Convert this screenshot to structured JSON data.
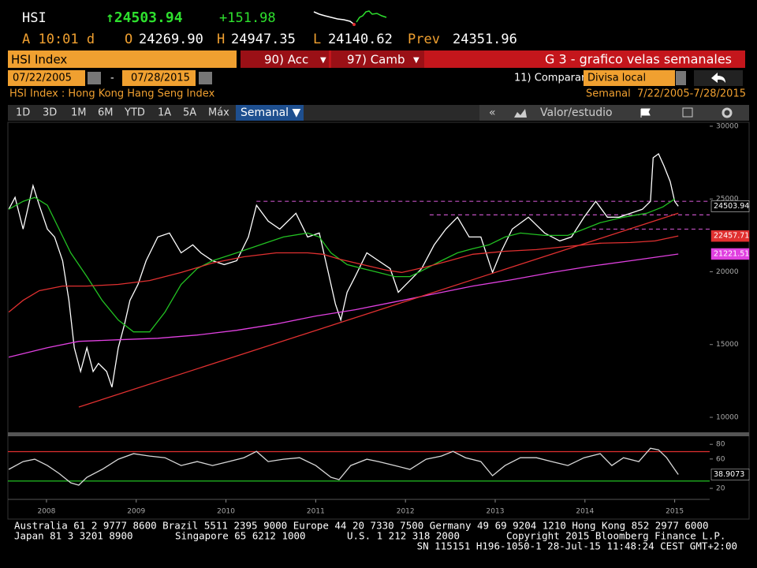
{
  "header": {
    "ticker": "HSI",
    "last": "↑24503.94",
    "change": "+151.98",
    "time": "A 10:01 d",
    "quotes": [
      {
        "label": "O",
        "value": "24269.90"
      },
      {
        "label": "H",
        "value": "24947.35"
      },
      {
        "label": "L",
        "value": "24140.62"
      },
      {
        "label": "Prev",
        "value": "24351.96"
      }
    ]
  },
  "toolbar": {
    "security": "HSI Index",
    "buttons": [
      "90) Acc",
      "97) Camb"
    ],
    "function_title": "G 3 - grafico velas semanales",
    "start_date": "07/22/2005",
    "date_separator": "-",
    "end_date": "07/28/2015",
    "compare": "11) Comparar",
    "currency": "Divisa local",
    "description": "HSI Index : Hong Kong Hang Seng Index",
    "period": "Semanal  7/22/2005-7/28/2015",
    "tabs": [
      "1D",
      "3D",
      "1M",
      "6M",
      "YTD",
      "1A",
      "5A",
      "Máx"
    ],
    "frequency": "Semanal ▼",
    "collapse": "«",
    "study": "Valor/estudio"
  },
  "chart_data": [
    {
      "type": "line",
      "xlim": [
        2008.07,
        2015.89
      ],
      "ylim": [
        8970,
        30270
      ],
      "yticks": [
        10000,
        15000,
        20000,
        25000,
        30000
      ],
      "grid": false,
      "hlines": [
        {
          "value": 24840,
          "from": 2010.84,
          "to": 2015.89,
          "color": "#c050c0",
          "dashed": true
        },
        {
          "value": 23910,
          "from": 2012.77,
          "to": 2015.89,
          "color": "#c050c0",
          "dashed": true
        },
        {
          "value": 22930,
          "from": 2014.58,
          "to": 2015.89,
          "color": "#c050c0",
          "dashed": true
        }
      ],
      "series": [
        {
          "color": "#ffffff",
          "label_last": true,
          "label_bg": "#000000",
          "x": [
            2008.08,
            2008.15,
            2008.24,
            2008.35,
            2008.42,
            2008.51,
            2008.59,
            2008.68,
            2008.75,
            2008.81,
            2008.88,
            2008.95,
            2009.02,
            2009.08,
            2009.17,
            2009.23,
            2009.3,
            2009.37,
            2009.43,
            2009.52,
            2009.61,
            2009.74,
            2009.87,
            2010.0,
            2010.13,
            2010.22,
            2010.35,
            2010.48,
            2010.62,
            2010.75,
            2010.84,
            2010.97,
            2011.1,
            2011.28,
            2011.41,
            2011.54,
            2011.63,
            2011.72,
            2011.78,
            2011.85,
            2011.94,
            2012.07,
            2012.2,
            2012.33,
            2012.42,
            2012.55,
            2012.68,
            2012.82,
            2012.95,
            2013.08,
            2013.21,
            2013.34,
            2013.47,
            2013.56,
            2013.69,
            2013.87,
            2014.05,
            2014.22,
            2014.35,
            2014.49,
            2014.62,
            2014.75,
            2014.88,
            2015.01,
            2015.14,
            2015.23,
            2015.26,
            2015.32,
            2015.38,
            2015.45,
            2015.5,
            2015.54
          ],
          "values": [
            24290,
            25110,
            22930,
            25920,
            24570,
            22930,
            22390,
            20760,
            18040,
            14780,
            13150,
            14780,
            13150,
            13700,
            13150,
            12070,
            14780,
            16410,
            18040,
            19130,
            20760,
            22390,
            22660,
            21300,
            21850,
            21300,
            20760,
            20490,
            20760,
            22390,
            24570,
            23480,
            22930,
            24020,
            22390,
            22660,
            20220,
            17770,
            16690,
            18590,
            19670,
            21300,
            20760,
            20220,
            18590,
            19400,
            20220,
            21850,
            22930,
            23750,
            22390,
            22390,
            19950,
            21300,
            22930,
            23750,
            22660,
            22120,
            22390,
            23750,
            24840,
            23750,
            23750,
            24020,
            24290,
            24840,
            27830,
            28100,
            27280,
            26200,
            24840,
            24503.94
          ]
        },
        {
          "color": "#22c022",
          "x": [
            2008.08,
            2008.24,
            2008.37,
            2008.51,
            2008.64,
            2008.77,
            2008.95,
            2009.12,
            2009.3,
            2009.47,
            2009.65,
            2009.82,
            2010.0,
            2010.18,
            2010.35,
            2010.62,
            2010.88,
            2011.14,
            2011.41,
            2011.54,
            2011.67,
            2011.85,
            2012.02,
            2012.2,
            2012.38,
            2012.55,
            2012.73,
            2012.9,
            2013.08,
            2013.25,
            2013.43,
            2013.61,
            2013.78,
            2014.05,
            2014.31,
            2014.49,
            2014.67,
            2014.93,
            2015.19,
            2015.37,
            2015.5
          ],
          "values": [
            24290,
            24840,
            25110,
            24570,
            22930,
            21300,
            19670,
            18040,
            16680,
            15870,
            15870,
            17230,
            19130,
            20220,
            20760,
            21300,
            21850,
            22390,
            22660,
            22390,
            21300,
            20490,
            20220,
            19950,
            19670,
            19670,
            20220,
            20760,
            21300,
            21580,
            21850,
            22390,
            22660,
            22500,
            22500,
            22930,
            23370,
            23750,
            24020,
            24460,
            25000
          ]
        },
        {
          "color": "#e03030",
          "label_last": true,
          "label_bg": "#e03030",
          "x": [
            2008.08,
            2008.24,
            2008.42,
            2008.68,
            2008.95,
            2009.3,
            2009.65,
            2010.0,
            2010.35,
            2010.7,
            2011.06,
            2011.41,
            2011.58,
            2011.76,
            2012.02,
            2012.29,
            2012.46,
            2012.73,
            2012.99,
            2013.25,
            2013.61,
            2013.96,
            2014.31,
            2014.67,
            2015.01,
            2015.28,
            2015.54
          ],
          "values": [
            17230,
            18040,
            18700,
            19020,
            19020,
            19130,
            19400,
            19950,
            20600,
            21030,
            21300,
            21300,
            21200,
            20870,
            20490,
            20110,
            19950,
            20330,
            20760,
            21200,
            21410,
            21520,
            21740,
            21960,
            22010,
            22120,
            22457.71
          ]
        },
        {
          "color": "#e040e0",
          "label_last": true,
          "label_bg": "#e040e0",
          "x": [
            2008.08,
            2008.51,
            2008.86,
            2009.3,
            2009.74,
            2010.18,
            2010.62,
            2011.06,
            2011.5,
            2011.94,
            2012.38,
            2012.82,
            2013.25,
            2013.69,
            2014.13,
            2014.56,
            2015.01,
            2015.54
          ],
          "values": [
            14130,
            14780,
            15220,
            15330,
            15430,
            15650,
            15980,
            16410,
            16960,
            17390,
            17930,
            18480,
            19020,
            19460,
            19950,
            20380,
            20760,
            21221.51
          ]
        },
        {
          "color": "#e03030",
          "x": [
            2008.86,
            2015.54
          ],
          "values": [
            10706,
            24022
          ]
        }
      ]
    },
    {
      "type": "line",
      "xlim": [
        2008.07,
        2015.89
      ],
      "ylim": [
        5,
        91
      ],
      "yticks": [
        20,
        60,
        80
      ],
      "grid": false,
      "xticks": [
        {
          "value": 2008.5,
          "label": "2008"
        },
        {
          "value": 2009.5,
          "label": "2009"
        },
        {
          "value": 2010.5,
          "label": "2010"
        },
        {
          "value": 2011.5,
          "label": "2011"
        },
        {
          "value": 2012.5,
          "label": "2012"
        },
        {
          "value": 2013.5,
          "label": "2013"
        },
        {
          "value": 2014.5,
          "label": "2014"
        },
        {
          "value": 2015.5,
          "label": "2015"
        }
      ],
      "hlines": [
        {
          "value": 70,
          "from": 2008.07,
          "to": 2015.89,
          "color": "#e03030",
          "dashed": false
        },
        {
          "value": 30,
          "from": 2008.07,
          "to": 2015.89,
          "color": "#22c022",
          "dashed": false
        }
      ],
      "series": [
        {
          "color": "#d8d8d8",
          "label_last": true,
          "label_bg": "#000000",
          "x": [
            2008.08,
            2008.24,
            2008.37,
            2008.51,
            2008.64,
            2008.77,
            2008.86,
            2008.95,
            2009.12,
            2009.3,
            2009.47,
            2009.65,
            2009.82,
            2010.0,
            2010.18,
            2010.35,
            2010.53,
            2010.7,
            2010.84,
            2010.97,
            2011.14,
            2011.32,
            2011.5,
            2011.67,
            2011.76,
            2011.89,
            2012.07,
            2012.2,
            2012.38,
            2012.55,
            2012.73,
            2012.9,
            2013.03,
            2013.17,
            2013.34,
            2013.47,
            2013.61,
            2013.78,
            2013.96,
            2014.13,
            2014.31,
            2014.49,
            2014.67,
            2014.8,
            2014.93,
            2015.1,
            2015.23,
            2015.32,
            2015.41,
            2015.5,
            2015.54
          ],
          "values": [
            45.8,
            56.5,
            59.7,
            51.1,
            40.4,
            27.6,
            24.4,
            35.1,
            45.8,
            59.7,
            67.2,
            64.0,
            61.8,
            51.1,
            56.5,
            51.1,
            56.5,
            61.8,
            70.4,
            56.5,
            59.7,
            61.8,
            51.1,
            35.1,
            31.9,
            51.1,
            59.7,
            56.5,
            51.1,
            45.8,
            59.7,
            64.0,
            70.4,
            61.8,
            56.5,
            37.2,
            51.1,
            61.8,
            61.8,
            56.5,
            51.1,
            61.8,
            67.2,
            51.1,
            61.8,
            56.5,
            74.7,
            72.5,
            61.8,
            45.8,
            38.9073
          ]
        }
      ]
    }
  ],
  "footer": {
    "line1": "Australia 61 2 9777 8600 Brazil 5511 2395 9000 Europe 44 20 7330 7500 Germany 49 69 9204 1210 Hong Kong 852 2977 6000",
    "line2": [
      "Japan 81 3 3201 8900",
      "Singapore 65 6212 1000",
      "U.S. 1 212 318 2000",
      "Copyright 2015 Bloomberg Finance L.P."
    ],
    "line3": "SN 115151 H196-1050-1 28-Jul-15 11:48:24 CEST GMT+2:00"
  }
}
